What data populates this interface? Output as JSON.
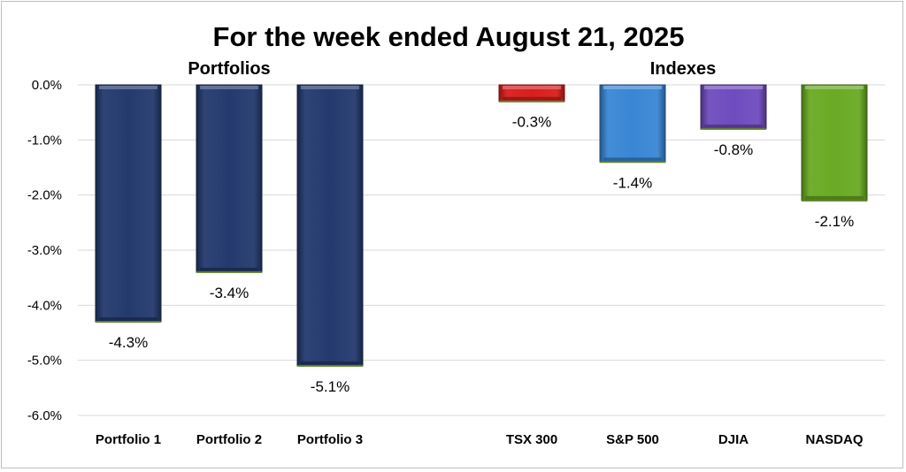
{
  "chart_data": {
    "type": "bar",
    "title": "For the week ended August 21, 2025",
    "groups": [
      {
        "label": "Portfolios",
        "categories": [
          "Portfolio 1",
          "Portfolio 2",
          "Portfolio 3"
        ]
      },
      {
        "label": "Indexes",
        "categories": [
          "TSX 300",
          "S&P 500",
          "DJIA",
          "NASDAQ"
        ]
      }
    ],
    "categories": [
      "Portfolio 1",
      "Portfolio 2",
      "Portfolio 3",
      "",
      "TSX 300",
      "S&P 500",
      "DJIA",
      "NASDAQ"
    ],
    "values": [
      -4.3,
      -3.4,
      -5.1,
      null,
      -0.3,
      -1.4,
      -0.8,
      -2.1
    ],
    "data_labels": [
      "-4.3%",
      "-3.4%",
      "-5.1%",
      "",
      "-0.3%",
      "-1.4%",
      "-0.8%",
      "-2.1%"
    ],
    "colors": [
      "#243a6e",
      "#243a6e",
      "#243a6e",
      null,
      "#d81e1e",
      "#3a86d4",
      "#6f4cbf",
      "#6aaa24"
    ],
    "ylim": [
      -6.0,
      0.0
    ],
    "yticks": [
      0.0,
      -1.0,
      -2.0,
      -3.0,
      -4.0,
      -5.0,
      -6.0
    ],
    "ytick_labels": [
      "0.0%",
      "-1.0%",
      "-2.0%",
      "-3.0%",
      "-4.0%",
      "-5.0%",
      "-6.0%"
    ],
    "xlabel": "",
    "ylabel": "",
    "grid": true,
    "legend": "none"
  }
}
